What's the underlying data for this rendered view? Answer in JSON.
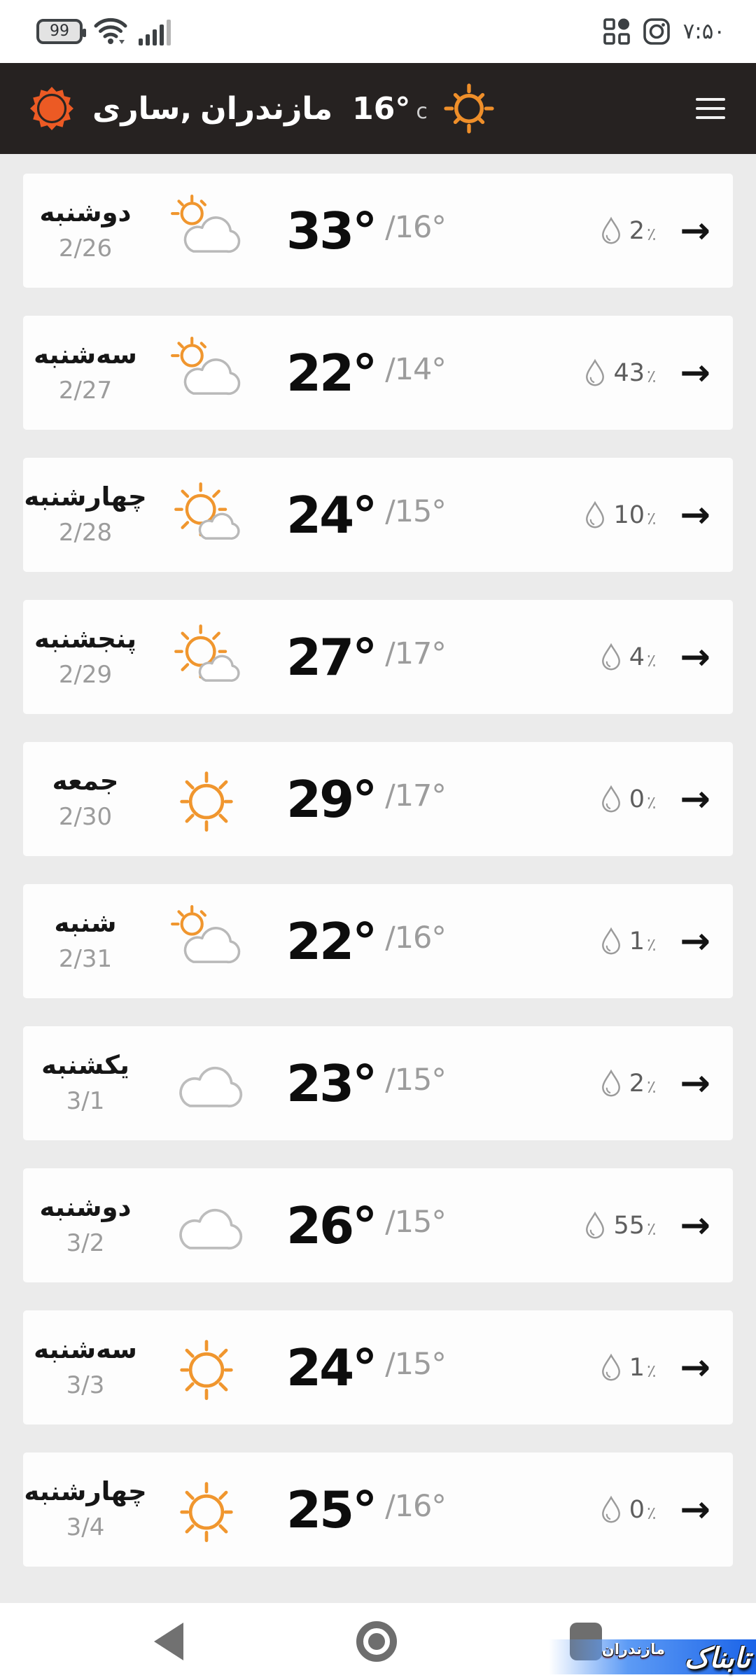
{
  "status_bar": {
    "battery_level": "99",
    "time": "۷:۵۰",
    "icons": [
      "battery-icon",
      "wifi-icon",
      "signal-bars-icon",
      "grid-apps-icon",
      "instagram-icon"
    ]
  },
  "header": {
    "logo_icon": "orange-sun-logo",
    "location": {
      "city": "ساری,",
      "province": "مازندران"
    },
    "current_temp": "16°",
    "temp_unit": "c",
    "condition_icon": "sun-outline-icon",
    "menu_icon": "hamburger-menu"
  },
  "forecast": {
    "percent_sign": "٪",
    "arrow_glyph": "→",
    "rows": [
      {
        "day": "دوشنبه",
        "date": "2/26",
        "icon": "partly-cloudy",
        "high": "33°",
        "low": "/16°",
        "precip": "2"
      },
      {
        "day": "سه‌شنبه",
        "date": "2/27",
        "icon": "partly-cloudy",
        "high": "22°",
        "low": "/14°",
        "precip": "43"
      },
      {
        "day": "چهارشنبه",
        "date": "2/28",
        "icon": "mostly-sunny",
        "high": "24°",
        "low": "/15°",
        "precip": "10"
      },
      {
        "day": "پنجشنبه",
        "date": "2/29",
        "icon": "mostly-sunny",
        "high": "27°",
        "low": "/17°",
        "precip": "4"
      },
      {
        "day": "جمعه",
        "date": "2/30",
        "icon": "sunny",
        "high": "29°",
        "low": "/17°",
        "precip": "0"
      },
      {
        "day": "شنبه",
        "date": "2/31",
        "icon": "partly-cloudy",
        "high": "22°",
        "low": "/16°",
        "precip": "1"
      },
      {
        "day": "یکشنبه",
        "date": "3/1",
        "icon": "cloudy",
        "high": "23°",
        "low": "/15°",
        "precip": "2"
      },
      {
        "day": "دوشنبه",
        "date": "3/2",
        "icon": "cloudy",
        "high": "26°",
        "low": "/15°",
        "precip": "55"
      },
      {
        "day": "سه‌شنبه",
        "date": "3/3",
        "icon": "sunny",
        "high": "24°",
        "low": "/15°",
        "precip": "1"
      },
      {
        "day": "چهارشنبه",
        "date": "3/4",
        "icon": "sunny",
        "high": "25°",
        "low": "/16°",
        "precip": "0"
      }
    ]
  },
  "nav_bar": {
    "icons": [
      "back-icon",
      "home-icon",
      "recents-icon"
    ]
  },
  "watermark": {
    "title": "تابناک",
    "subtitle": "مازندران"
  },
  "colors": {
    "header_bg": "#262221",
    "logo_orange": "#ec5a24",
    "accent_orange": "#ef8f2a",
    "row_sun_orange": "#f0962e",
    "cloud_gray": "#b9b9b9",
    "page_bg": "#ebebeb",
    "card_bg": "#fdfdfd",
    "banner_blue": "#1a63e8"
  }
}
